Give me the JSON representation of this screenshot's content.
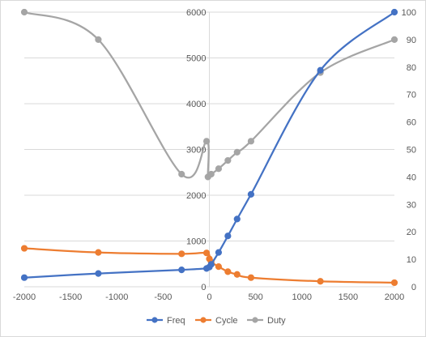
{
  "chart_data": {
    "type": "line",
    "subtype": "smooth scatter with markers, secondary y-axis",
    "x_axis": {
      "min": -2000,
      "max": 2000,
      "ticks": [
        -2000,
        -1500,
        -1000,
        -500,
        0,
        500,
        1000,
        1500,
        2000
      ]
    },
    "y_left": {
      "min": 0,
      "max": 6000,
      "ticks": [
        0,
        1000,
        2000,
        3000,
        4000,
        5000,
        6000
      ]
    },
    "y_right": {
      "min": 0,
      "max": 100,
      "ticks": [
        0,
        10,
        20,
        30,
        40,
        50,
        60,
        70,
        80,
        90,
        100
      ]
    },
    "gridlines": "horizontal major gridlines",
    "legend_position": "bottom",
    "series": [
      {
        "name": "Freq",
        "color": "#4472c4",
        "axis": "left",
        "points": [
          [
            -2000,
            200
          ],
          [
            -1200,
            290
          ],
          [
            -300,
            370
          ],
          [
            -30,
            400
          ],
          [
            0,
            430
          ],
          [
            20,
            490
          ],
          [
            100,
            750
          ],
          [
            200,
            1110
          ],
          [
            300,
            1480
          ],
          [
            450,
            2020
          ],
          [
            1200,
            4730
          ],
          [
            2000,
            6000
          ]
        ]
      },
      {
        "name": "Cycle",
        "color": "#ed7d31",
        "axis": "left",
        "points": [
          [
            -2000,
            840
          ],
          [
            -1200,
            750
          ],
          [
            -300,
            720
          ],
          [
            -30,
            740
          ],
          [
            0,
            610
          ],
          [
            20,
            540
          ],
          [
            100,
            440
          ],
          [
            200,
            330
          ],
          [
            300,
            270
          ],
          [
            450,
            200
          ],
          [
            1200,
            120
          ],
          [
            2000,
            90
          ]
        ]
      },
      {
        "name": "Duty",
        "color": "#a5a5a5",
        "axis": "right",
        "points": [
          [
            -2000,
            100
          ],
          [
            -1200,
            90
          ],
          [
            -300,
            41
          ],
          [
            -30,
            53
          ],
          [
            -15,
            40
          ],
          [
            20,
            41
          ],
          [
            100,
            43
          ],
          [
            200,
            46
          ],
          [
            300,
            49
          ],
          [
            450,
            53
          ],
          [
            1200,
            78
          ],
          [
            2000,
            90
          ]
        ]
      }
    ]
  }
}
